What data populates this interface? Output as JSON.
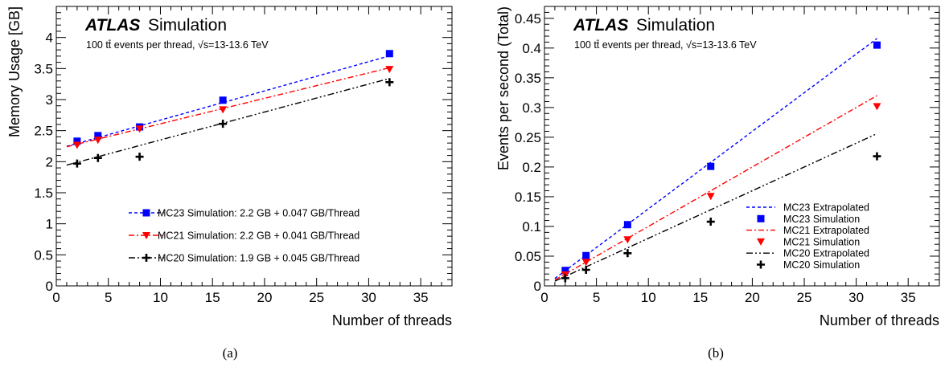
{
  "chart_data": [
    {
      "id": "a",
      "type": "scatter",
      "caption": "(a)",
      "xlabel": "Number of threads",
      "ylabel": "Memory Usage [GB]",
      "xlim": [
        0,
        38
      ],
      "ylim": [
        0,
        4.5
      ],
      "xticks": [
        0,
        5,
        10,
        15,
        20,
        25,
        30,
        35
      ],
      "xtick_labels": [
        "0",
        "5",
        "10",
        "15",
        "20",
        "25",
        "30",
        "35"
      ],
      "yticks": [
        0,
        0.5,
        1,
        1.5,
        2,
        2.5,
        3,
        3.5,
        4
      ],
      "ytick_labels": [
        "0",
        "0.5",
        "1",
        "1.5",
        "2",
        "2.5",
        "3",
        "3.5",
        "4"
      ],
      "atlas_label": "ATLAS",
      "atlas_suffix": "Simulation",
      "subtitle": "100 tt̄ events per thread, √s=13-13.6 TeV",
      "legend_position": "lower-right",
      "grid": false,
      "series": [
        {
          "name": "MC23 Simulation: 2.2 GB + 0.047 GB/Thread",
          "color": "#0000ff",
          "marker": "square",
          "line": "dashed",
          "x": [
            2,
            4,
            8,
            16,
            32
          ],
          "y": [
            2.33,
            2.42,
            2.56,
            2.99,
            3.74
          ],
          "fit": {
            "intercept": 2.2,
            "slope": 0.047
          }
        },
        {
          "name": "MC21 Simulation: 2.2 GB + 0.041 GB/Thread",
          "color": "#ff0000",
          "marker": "triangle-down",
          "line": "dashdot",
          "x": [
            2,
            4,
            8,
            16,
            32
          ],
          "y": [
            2.27,
            2.35,
            2.53,
            2.84,
            3.49
          ],
          "fit": {
            "intercept": 2.2,
            "slope": 0.041
          }
        },
        {
          "name": "MC20 Simulation: 1.9 GB + 0.045 GB/Thread",
          "color": "#000000",
          "marker": "cross",
          "line": "dashdotdot",
          "x": [
            2,
            4,
            8,
            16,
            32
          ],
          "y": [
            1.97,
            2.06,
            2.08,
            2.61,
            3.28
          ],
          "fit": {
            "intercept": 1.9,
            "slope": 0.045
          }
        }
      ]
    },
    {
      "id": "b",
      "type": "scatter",
      "caption": "(b)",
      "xlabel": "Number of threads",
      "ylabel": "Events per second (Total)",
      "xlim": [
        0,
        38
      ],
      "ylim": [
        0,
        0.47
      ],
      "xticks": [
        0,
        5,
        10,
        15,
        20,
        25,
        30,
        35
      ],
      "xtick_labels": [
        "0",
        "5",
        "10",
        "15",
        "20",
        "25",
        "30",
        "35"
      ],
      "yticks": [
        0,
        0.05,
        0.1,
        0.15,
        0.2,
        0.25,
        0.3,
        0.35,
        0.4,
        0.45
      ],
      "ytick_labels": [
        "0",
        "0.05",
        "0.1",
        "0.15",
        "0.2",
        "0.25",
        "0.3",
        "0.35",
        "0.4",
        "0.45"
      ],
      "atlas_label": "ATLAS",
      "atlas_suffix": "Simulation",
      "subtitle": "100 tt̄ events per thread, √s=13-13.6 TeV",
      "legend_position": "lower-right",
      "grid": false,
      "lines": [
        {
          "name": "MC23 Extrapolated",
          "color": "#0000ff",
          "line": "dashed",
          "x": [
            1,
            32
          ],
          "y": [
            0.0125,
            0.416
          ]
        },
        {
          "name": "MC21 Extrapolated",
          "color": "#ff0000",
          "line": "dashdot",
          "x": [
            1,
            32
          ],
          "y": [
            0.01,
            0.32
          ]
        },
        {
          "name": "MC20 Extrapolated",
          "color": "#000000",
          "line": "dashdotdot",
          "x": [
            1,
            32
          ],
          "y": [
            0.008,
            0.256
          ]
        }
      ],
      "series": [
        {
          "name": "MC23 Simulation",
          "color": "#0000ff",
          "marker": "square",
          "x": [
            2,
            4,
            8,
            16,
            32
          ],
          "y": [
            0.026,
            0.051,
            0.103,
            0.201,
            0.405
          ]
        },
        {
          "name": "MC21 Simulation",
          "color": "#ff0000",
          "marker": "triangle-down",
          "x": [
            2,
            4,
            8,
            16,
            32
          ],
          "y": [
            0.019,
            0.04,
            0.078,
            0.151,
            0.302
          ]
        },
        {
          "name": "MC20 Simulation",
          "color": "#000000",
          "marker": "cross",
          "x": [
            2,
            4,
            8,
            16,
            32
          ],
          "y": [
            0.013,
            0.027,
            0.055,
            0.108,
            0.218
          ]
        }
      ],
      "legend_order": [
        {
          "kind": "line",
          "ref": 0
        },
        {
          "kind": "series",
          "ref": 0
        },
        {
          "kind": "line",
          "ref": 1
        },
        {
          "kind": "series",
          "ref": 1
        },
        {
          "kind": "line",
          "ref": 2
        },
        {
          "kind": "series",
          "ref": 2
        }
      ]
    }
  ]
}
